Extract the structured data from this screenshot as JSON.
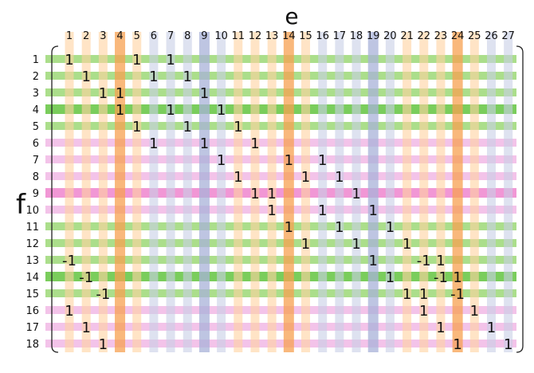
{
  "title_columns": "e",
  "title_rows": "f",
  "column_labels": [
    "1",
    "2",
    "3",
    "4",
    "5",
    "6",
    "7",
    "8",
    "9",
    "10",
    "11",
    "12",
    "13",
    "14",
    "15",
    "16",
    "17",
    "18",
    "19",
    "20",
    "21",
    "22",
    "23",
    "24",
    "25",
    "26",
    "27"
  ],
  "row_labels": [
    "1",
    "2",
    "3",
    "4",
    "5",
    "6",
    "7",
    "8",
    "9",
    "10",
    "11",
    "12",
    "13",
    "14",
    "15",
    "16",
    "17",
    "18"
  ],
  "colors": {
    "green": "#96d66e",
    "green_strong": "#6cc84a",
    "pink": "#f0b4e4",
    "pink_strong": "#f08cd0",
    "orange": "#ffd2a0",
    "orange_strong": "#f7a050",
    "blue": "#c8cfe6",
    "blue_strong": "#a8b2d8"
  },
  "row_bands": [
    "green",
    "green",
    "green",
    "green_strong",
    "green",
    "pink",
    "pink",
    "pink",
    "pink_strong",
    "pink",
    "green",
    "green",
    "green",
    "green_strong",
    "green",
    "pink",
    "pink",
    "pink"
  ],
  "column_bands": [
    "orange",
    "orange",
    "orange",
    "orange_strong",
    "orange",
    "blue",
    "blue",
    "blue",
    "blue_strong",
    "blue",
    "orange",
    "orange",
    "orange",
    "orange_strong",
    "orange",
    "blue",
    "blue",
    "blue",
    "blue_strong",
    "blue",
    "orange",
    "orange",
    "orange",
    "orange_strong",
    "orange",
    "blue",
    "blue"
  ],
  "chart_data": {
    "type": "table",
    "entries": [
      {
        "row": 1,
        "col": 1,
        "value": "1"
      },
      {
        "row": 1,
        "col": 5,
        "value": "1"
      },
      {
        "row": 1,
        "col": 7,
        "value": "1"
      },
      {
        "row": 2,
        "col": 2,
        "value": "1"
      },
      {
        "row": 2,
        "col": 6,
        "value": "1"
      },
      {
        "row": 2,
        "col": 8,
        "value": "1"
      },
      {
        "row": 3,
        "col": 3,
        "value": "1"
      },
      {
        "row": 3,
        "col": 4,
        "value": "1"
      },
      {
        "row": 3,
        "col": 9,
        "value": "1"
      },
      {
        "row": 4,
        "col": 4,
        "value": "1"
      },
      {
        "row": 4,
        "col": 7,
        "value": "1"
      },
      {
        "row": 4,
        "col": 10,
        "value": "1"
      },
      {
        "row": 5,
        "col": 5,
        "value": "1"
      },
      {
        "row": 5,
        "col": 8,
        "value": "1"
      },
      {
        "row": 5,
        "col": 11,
        "value": "1"
      },
      {
        "row": 6,
        "col": 6,
        "value": "1"
      },
      {
        "row": 6,
        "col": 9,
        "value": "1"
      },
      {
        "row": 6,
        "col": 12,
        "value": "1"
      },
      {
        "row": 7,
        "col": 10,
        "value": "1"
      },
      {
        "row": 7,
        "col": 14,
        "value": "1"
      },
      {
        "row": 7,
        "col": 16,
        "value": "1"
      },
      {
        "row": 8,
        "col": 11,
        "value": "1"
      },
      {
        "row": 8,
        "col": 15,
        "value": "1"
      },
      {
        "row": 8,
        "col": 17,
        "value": "1"
      },
      {
        "row": 9,
        "col": 12,
        "value": "1"
      },
      {
        "row": 9,
        "col": 13,
        "value": "1"
      },
      {
        "row": 9,
        "col": 18,
        "value": "1"
      },
      {
        "row": 10,
        "col": 13,
        "value": "1"
      },
      {
        "row": 10,
        "col": 16,
        "value": "1"
      },
      {
        "row": 10,
        "col": 19,
        "value": "1"
      },
      {
        "row": 11,
        "col": 14,
        "value": "1"
      },
      {
        "row": 11,
        "col": 17,
        "value": "1"
      },
      {
        "row": 11,
        "col": 20,
        "value": "1"
      },
      {
        "row": 12,
        "col": 15,
        "value": "1"
      },
      {
        "row": 12,
        "col": 18,
        "value": "1"
      },
      {
        "row": 12,
        "col": 21,
        "value": "1"
      },
      {
        "row": 13,
        "col": 1,
        "value": "-1"
      },
      {
        "row": 13,
        "col": 19,
        "value": "1"
      },
      {
        "row": 13,
        "col": 22,
        "value": "-1"
      },
      {
        "row": 13,
        "col": 23,
        "value": "1"
      },
      {
        "row": 14,
        "col": 2,
        "value": "-1"
      },
      {
        "row": 14,
        "col": 20,
        "value": "1"
      },
      {
        "row": 14,
        "col": 23,
        "value": "-1"
      },
      {
        "row": 14,
        "col": 24,
        "value": "1"
      },
      {
        "row": 15,
        "col": 3,
        "value": "-1"
      },
      {
        "row": 15,
        "col": 21,
        "value": "1"
      },
      {
        "row": 15,
        "col": 22,
        "value": "1"
      },
      {
        "row": 15,
        "col": 24,
        "value": "-1"
      },
      {
        "row": 16,
        "col": 1,
        "value": "1"
      },
      {
        "row": 16,
        "col": 22,
        "value": "1"
      },
      {
        "row": 16,
        "col": 25,
        "value": "1"
      },
      {
        "row": 17,
        "col": 2,
        "value": "1"
      },
      {
        "row": 17,
        "col": 23,
        "value": "1"
      },
      {
        "row": 17,
        "col": 26,
        "value": "1"
      },
      {
        "row": 18,
        "col": 3,
        "value": "1"
      },
      {
        "row": 18,
        "col": 24,
        "value": "1"
      },
      {
        "row": 18,
        "col": 27,
        "value": "1"
      }
    ]
  }
}
